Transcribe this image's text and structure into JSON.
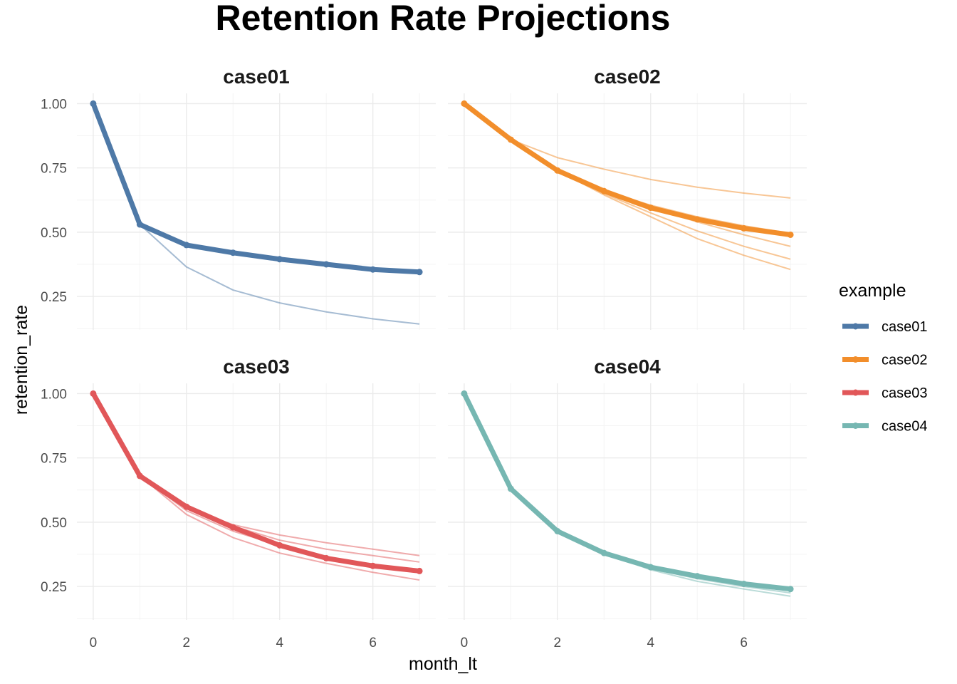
{
  "chart_data": {
    "type": "line",
    "title": "Retention Rate Projections",
    "xlabel": "month_lt",
    "ylabel": "retention_rate",
    "xlim": [
      -0.35,
      7.35
    ],
    "ylim": [
      0.12,
      1.04
    ],
    "x_ticks": [
      0,
      2,
      4,
      6
    ],
    "y_ticks": [
      0.25,
      0.5,
      0.75,
      1.0
    ],
    "y_tick_labels": [
      "0.25",
      "0.50",
      "0.75",
      "1.00"
    ],
    "grid": true,
    "legend": {
      "title": "example",
      "position": "right",
      "entries": [
        {
          "name": "case01",
          "color": "#4e79a7"
        },
        {
          "name": "case02",
          "color": "#f28e2b"
        },
        {
          "name": "case03",
          "color": "#e15759"
        },
        {
          "name": "case04",
          "color": "#76b7b2"
        }
      ]
    },
    "panels": [
      {
        "name": "case01",
        "color": "#4e79a7",
        "x": [
          0,
          1,
          2,
          3,
          4,
          5,
          6,
          7
        ],
        "main": [
          1.0,
          0.53,
          0.45,
          0.42,
          0.395,
          0.375,
          0.355,
          0.345
        ],
        "projections": [
          [
            0.53,
            0.365,
            0.275,
            0.225,
            0.19,
            0.163,
            0.143
          ],
          [
            0.53,
            0.45,
            0.42,
            0.395,
            0.375,
            0.36,
            0.35
          ]
        ]
      },
      {
        "name": "case02",
        "color": "#f28e2b",
        "x": [
          0,
          1,
          2,
          3,
          4,
          5,
          6,
          7
        ],
        "main": [
          1.0,
          0.86,
          0.74,
          0.66,
          0.595,
          0.55,
          0.515,
          0.49
        ],
        "projections": [
          [
            0.86,
            0.79,
            0.745,
            0.705,
            0.675,
            0.652,
            0.633
          ],
          [
            0.86,
            0.74,
            0.66,
            0.605,
            0.56,
            0.525,
            0.495
          ],
          [
            0.86,
            0.74,
            0.66,
            0.595,
            0.54,
            0.49,
            0.445
          ],
          [
            0.86,
            0.74,
            0.65,
            0.575,
            0.505,
            0.445,
            0.395
          ],
          [
            0.86,
            0.74,
            0.645,
            0.56,
            0.475,
            0.41,
            0.355
          ]
        ]
      },
      {
        "name": "case03",
        "color": "#e15759",
        "x": [
          0,
          1,
          2,
          3,
          4,
          5,
          6,
          7
        ],
        "main": [
          1.0,
          0.68,
          0.56,
          0.48,
          0.41,
          0.36,
          0.33,
          0.31
        ],
        "projections": [
          [
            0.68,
            0.555,
            0.49,
            0.45,
            0.42,
            0.395,
            0.37
          ],
          [
            0.68,
            0.56,
            0.485,
            0.43,
            0.395,
            0.37,
            0.345
          ],
          [
            0.68,
            0.545,
            0.465,
            0.41,
            0.365,
            0.335,
            0.305
          ],
          [
            0.68,
            0.53,
            0.44,
            0.38,
            0.34,
            0.305,
            0.275
          ]
        ]
      },
      {
        "name": "case04",
        "color": "#76b7b2",
        "x": [
          0,
          1,
          2,
          3,
          4,
          5,
          6,
          7
        ],
        "main": [
          1.0,
          0.63,
          0.465,
          0.38,
          0.325,
          0.29,
          0.26,
          0.24
        ],
        "projections": [
          [
            0.63,
            0.465,
            0.38,
            0.32,
            0.28,
            0.25,
            0.225
          ],
          [
            0.63,
            0.465,
            0.38,
            0.315,
            0.27,
            0.24,
            0.212
          ]
        ]
      }
    ]
  }
}
